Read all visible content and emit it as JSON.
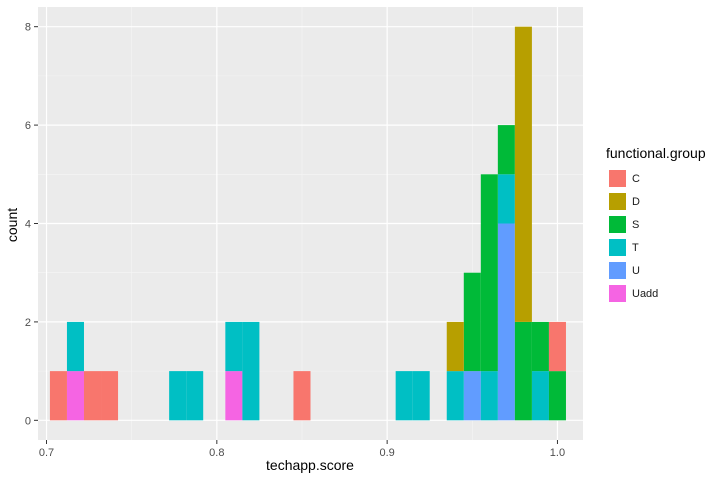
{
  "chart_data": {
    "type": "bar",
    "subtype": "stacked histogram",
    "xlabel": "techapp.score",
    "ylabel": "count",
    "xlim": [
      0.695,
      1.015
    ],
    "ylim": [
      -0.4,
      8.4
    ],
    "x_ticks": [
      "0.7",
      "0.8",
      "0.9",
      "1.0"
    ],
    "y_ticks": [
      "0",
      "2",
      "4",
      "6",
      "8"
    ],
    "bin_width": 0.01,
    "grid": true,
    "legend_position": "right",
    "legend_title": "functional.group",
    "series": [
      {
        "name": "C",
        "color": "#F8766D",
        "bins": [
          {
            "x": 0.707,
            "count": 1
          },
          {
            "x": 0.727,
            "count": 1
          },
          {
            "x": 0.737,
            "count": 1
          },
          {
            "x": 0.85,
            "count": 1
          },
          {
            "x": 1.0,
            "count": 1
          }
        ]
      },
      {
        "name": "D",
        "color": "#B79F00",
        "bins": [
          {
            "x": 0.94,
            "count": 1
          },
          {
            "x": 0.98,
            "count": 6
          }
        ]
      },
      {
        "name": "S",
        "color": "#00BA38",
        "bins": [
          {
            "x": 0.95,
            "count": 2
          },
          {
            "x": 0.96,
            "count": 4
          },
          {
            "x": 0.97,
            "count": 1
          },
          {
            "x": 0.98,
            "count": 2
          },
          {
            "x": 0.99,
            "count": 1
          },
          {
            "x": 1.0,
            "count": 1
          }
        ]
      },
      {
        "name": "T",
        "color": "#00BFC4",
        "bins": [
          {
            "x": 0.717,
            "count": 1
          },
          {
            "x": 0.777,
            "count": 1
          },
          {
            "x": 0.787,
            "count": 1
          },
          {
            "x": 0.81,
            "count": 1
          },
          {
            "x": 0.82,
            "count": 2
          },
          {
            "x": 0.91,
            "count": 1
          },
          {
            "x": 0.92,
            "count": 1
          },
          {
            "x": 0.94,
            "count": 1
          },
          {
            "x": 0.96,
            "count": 1
          },
          {
            "x": 0.97,
            "count": 1
          },
          {
            "x": 0.99,
            "count": 1
          }
        ]
      },
      {
        "name": "U",
        "color": "#619CFF",
        "bins": [
          {
            "x": 0.95,
            "count": 1
          },
          {
            "x": 0.97,
            "count": 4
          }
        ]
      },
      {
        "name": "Uadd",
        "color": "#F564E3",
        "bins": [
          {
            "x": 0.717,
            "count": 1
          },
          {
            "x": 0.81,
            "count": 1
          }
        ]
      }
    ]
  }
}
